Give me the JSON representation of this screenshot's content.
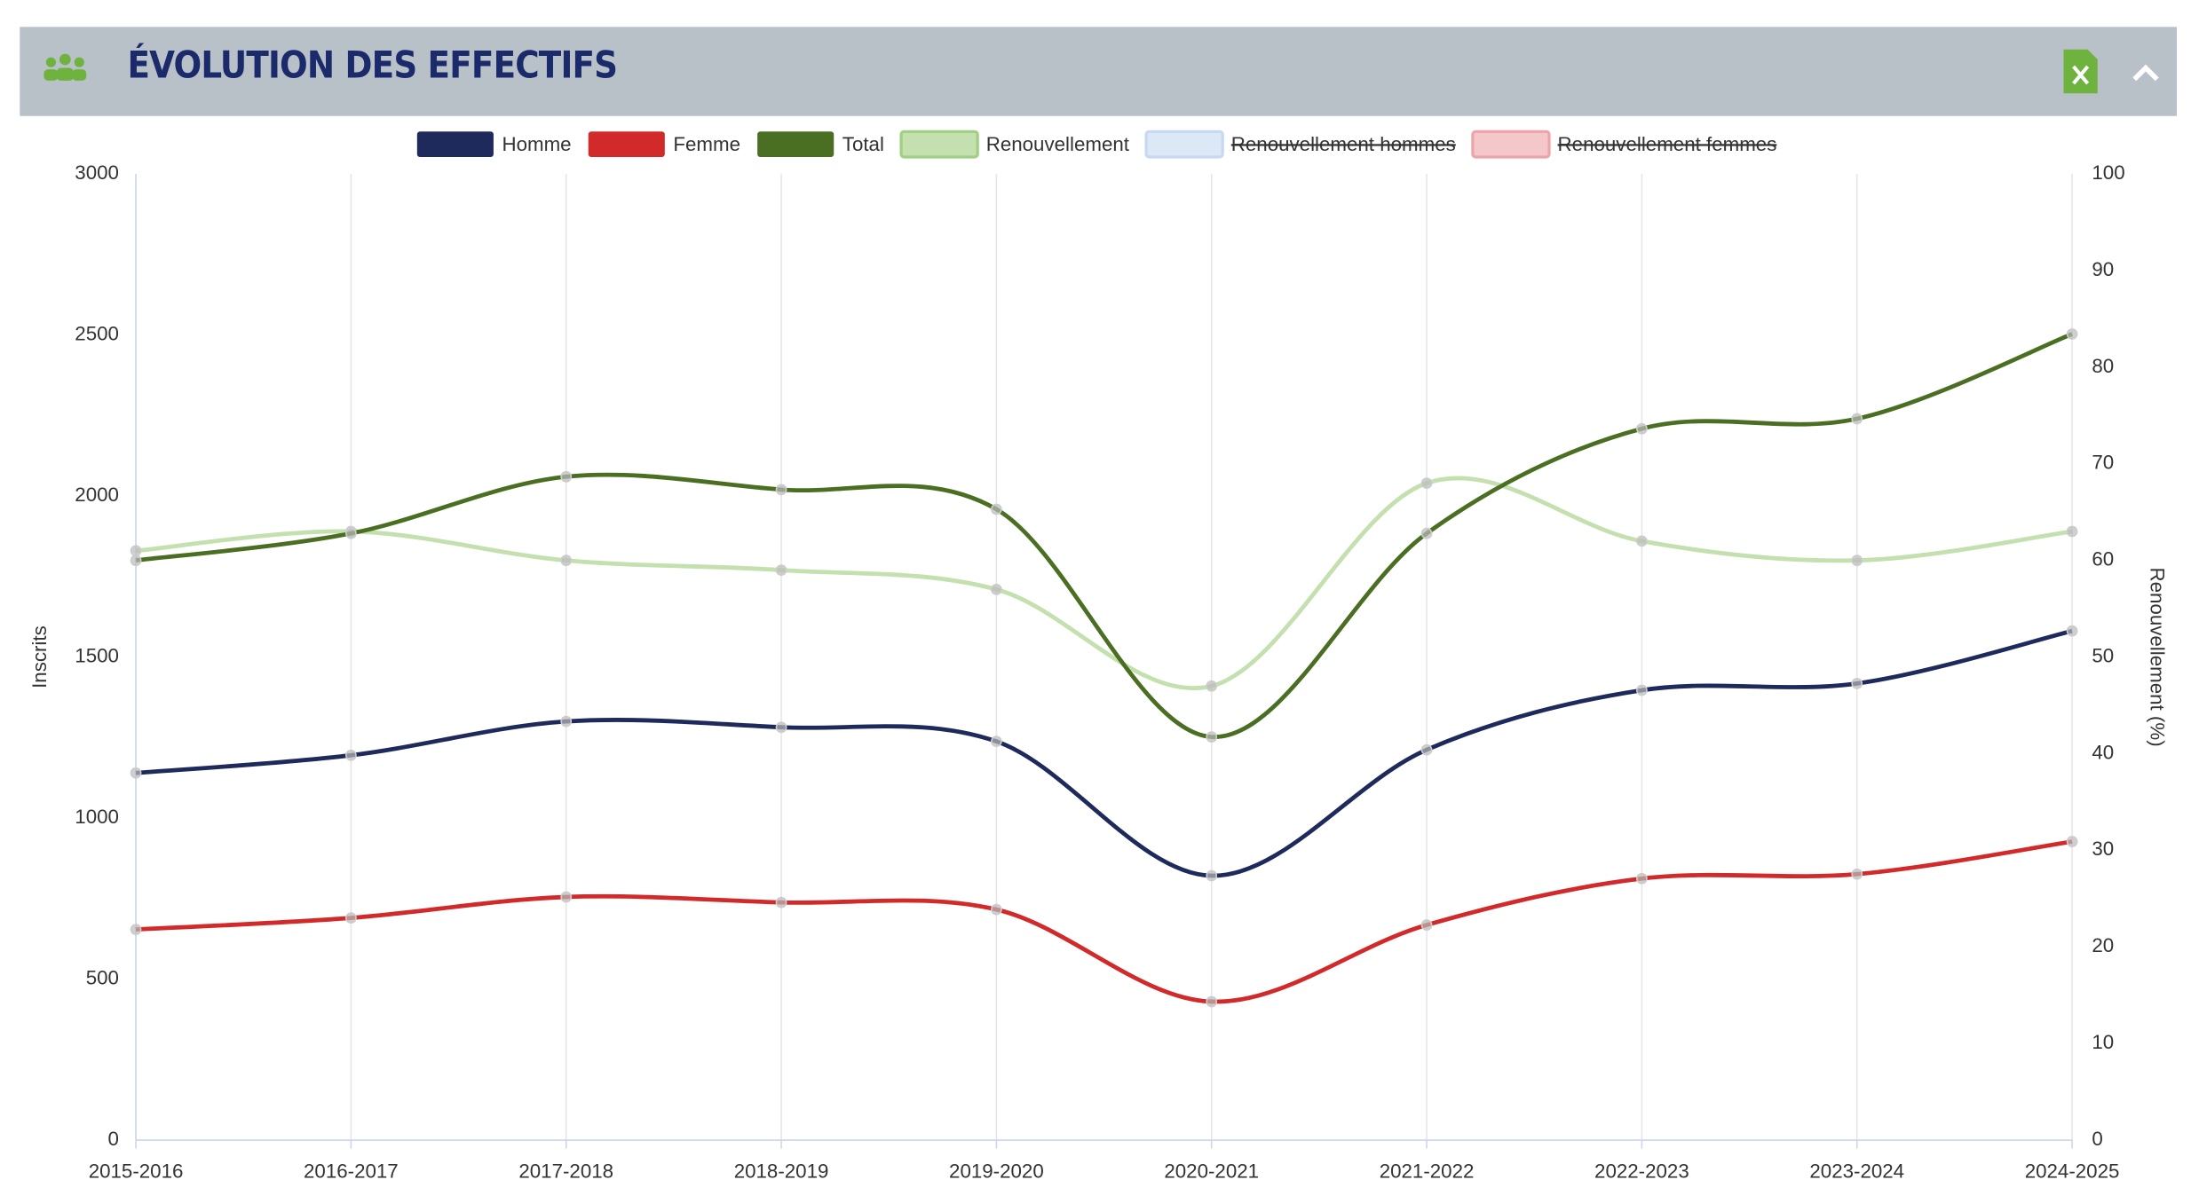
{
  "header": {
    "title": "ÉVOLUTION DES EFFECTIFS"
  },
  "chart_data": {
    "type": "line",
    "smooth": true,
    "categories": [
      "2015-2016",
      "2016-2017",
      "2017-2018",
      "2018-2019",
      "2019-2020",
      "2020-2021",
      "2021-2022",
      "2022-2023",
      "2023-2024",
      "2024-2025"
    ],
    "y_label": "Inscrits",
    "y2_label": "Renouvellement (%)",
    "ylim": [
      0,
      3000
    ],
    "yticks": [
      0,
      500,
      1000,
      1500,
      2000,
      2500,
      3000
    ],
    "y2lim": [
      0,
      100
    ],
    "y2ticks": [
      0,
      10,
      20,
      30,
      40,
      50,
      60,
      70,
      80,
      90,
      100
    ],
    "grid": "x",
    "legend": "top",
    "series": [
      {
        "name": "Homme",
        "color": "#1f2a5c",
        "values": [
          1140,
          1195,
          1300,
          1282,
          1238,
          821,
          1212,
          1397,
          1418,
          1581
        ]
      },
      {
        "name": "Femme",
        "color": "#d22a2a",
        "values": [
          654,
          690,
          755,
          738,
          716,
          430,
          668,
          812,
          826,
          927
        ]
      },
      {
        "name": "Total",
        "color": "#4a6f22",
        "values": [
          1800,
          1884,
          2060,
          2020,
          1959,
          1252,
          1884,
          2209,
          2240,
          2503
        ]
      },
      {
        "name": "Renouvellement",
        "color": "#c3e0ae",
        "axis": "y2",
        "values": [
          61,
          63,
          60,
          59,
          57,
          47,
          68,
          62,
          60,
          63
        ]
      },
      {
        "name": "Renouvellement hommes",
        "color": "#c6d9f1",
        "axis": "y2",
        "hidden": true
      },
      {
        "name": "Renouvellement femmes",
        "color": "#eda4a8",
        "axis": "y2",
        "hidden": true
      }
    ]
  }
}
